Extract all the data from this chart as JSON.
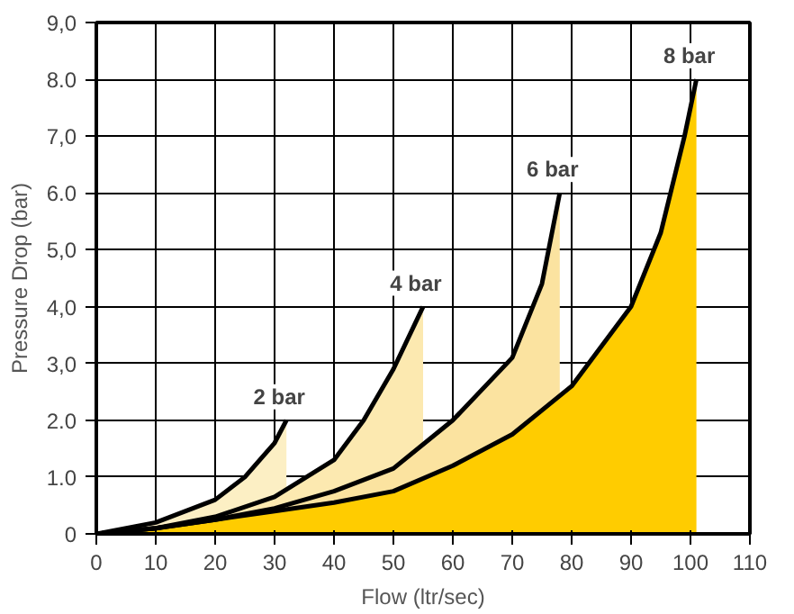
{
  "chart_data": {
    "type": "area",
    "xlabel": "Flow (ltr/sec)",
    "ylabel": "Pressure Drop (bar)",
    "xlim": [
      0,
      110
    ],
    "xticks": [
      0,
      10,
      20,
      30,
      40,
      50,
      60,
      70,
      80,
      90,
      100,
      110
    ],
    "ylim": [
      0,
      9
    ],
    "yticks": [
      {
        "value": 0,
        "label": "0"
      },
      {
        "value": 1,
        "label": "1.0"
      },
      {
        "value": 2,
        "label": "2.0"
      },
      {
        "value": 3,
        "label": "3,0"
      },
      {
        "value": 4,
        "label": "4,0"
      },
      {
        "value": 5,
        "label": "5,0"
      },
      {
        "value": 6,
        "label": "6.0"
      },
      {
        "value": 7,
        "label": "7,0"
      },
      {
        "value": 8,
        "label": "8.0"
      },
      {
        "value": 9,
        "label": "9,0"
      }
    ],
    "grid": true,
    "series": [
      {
        "name": "2 bar",
        "color": "#fcefc4",
        "x": [
          0,
          10,
          20,
          25,
          30,
          32
        ],
        "values": [
          0,
          0.2,
          0.6,
          1.0,
          1.6,
          2.0
        ]
      },
      {
        "name": "4 bar",
        "color": "#fce9b0",
        "x": [
          0,
          10,
          20,
          30,
          40,
          45,
          50,
          55
        ],
        "values": [
          0,
          0.1,
          0.3,
          0.65,
          1.3,
          2.0,
          2.9,
          4.0
        ]
      },
      {
        "name": "6 bar",
        "color": "#fbe3a0",
        "x": [
          0,
          10,
          20,
          30,
          40,
          50,
          60,
          70,
          75,
          78
        ],
        "values": [
          0,
          0.1,
          0.25,
          0.45,
          0.75,
          1.15,
          2.0,
          3.1,
          4.4,
          6.0
        ]
      },
      {
        "name": "8 bar",
        "color": "#ffcc00",
        "x": [
          0,
          10,
          20,
          30,
          40,
          50,
          60,
          70,
          80,
          90,
          95,
          99,
          101
        ],
        "values": [
          0,
          0.1,
          0.25,
          0.4,
          0.55,
          0.75,
          1.2,
          1.75,
          2.6,
          4.0,
          5.3,
          7.0,
          8.0
        ]
      }
    ]
  }
}
